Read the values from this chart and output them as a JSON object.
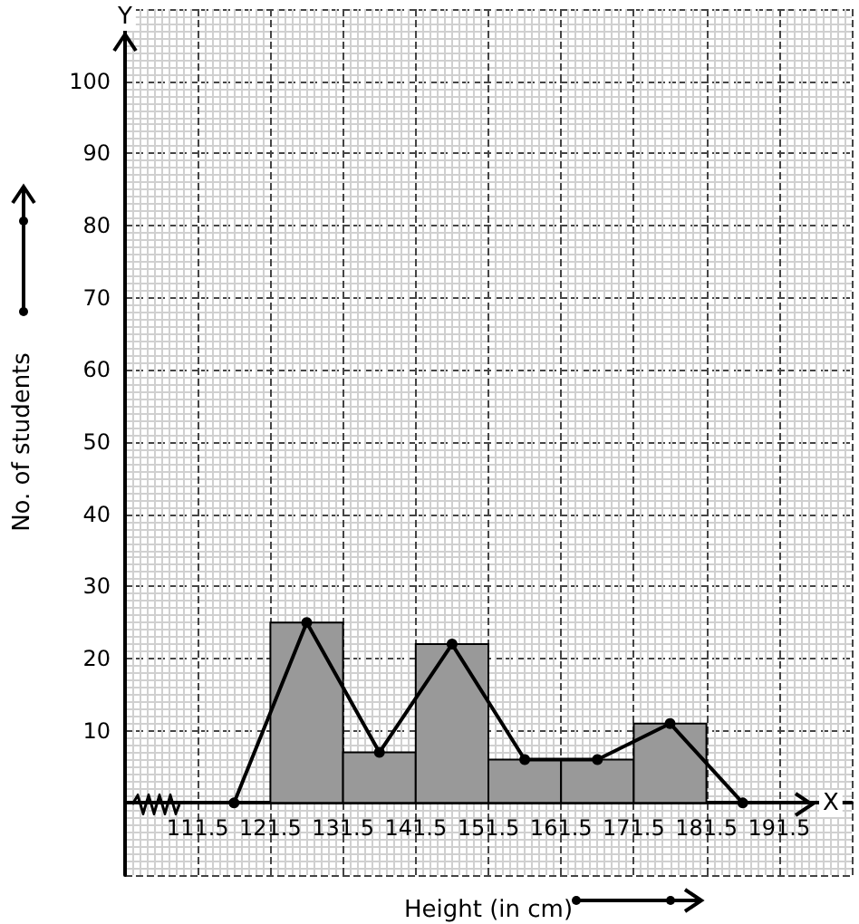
{
  "chart_data": {
    "type": "histogram",
    "xlabel": "Height (in cm)",
    "ylabel": "No. of students",
    "annotations": [
      "Y",
      "X"
    ],
    "series": [
      {
        "type": "histogram",
        "bins": [
          121.5,
          131.5,
          141.5,
          151.5,
          161.5,
          171.5,
          181.5
        ],
        "values": [
          25,
          7,
          22,
          6,
          6,
          11
        ],
        "color": "#999999"
      },
      {
        "type": "line",
        "x": [
          116.5,
          126.5,
          136.5,
          146.5,
          156.5,
          166.5,
          176.5,
          186.5
        ],
        "values": [
          0,
          25,
          7,
          22,
          6,
          6,
          11,
          0
        ],
        "color": "#000000",
        "marker": "circle",
        "line_style": "solid"
      }
    ],
    "xlim": [
      101.5,
      201.5
    ],
    "ylim": [
      -10,
      110
    ],
    "xticks": [
      111.5,
      121.5,
      131.5,
      141.5,
      151.5,
      161.5,
      171.5,
      181.5,
      191.5
    ],
    "yticks": [
      10,
      20,
      30,
      40,
      50,
      60,
      70,
      80,
      90,
      100
    ],
    "grid": true
  }
}
